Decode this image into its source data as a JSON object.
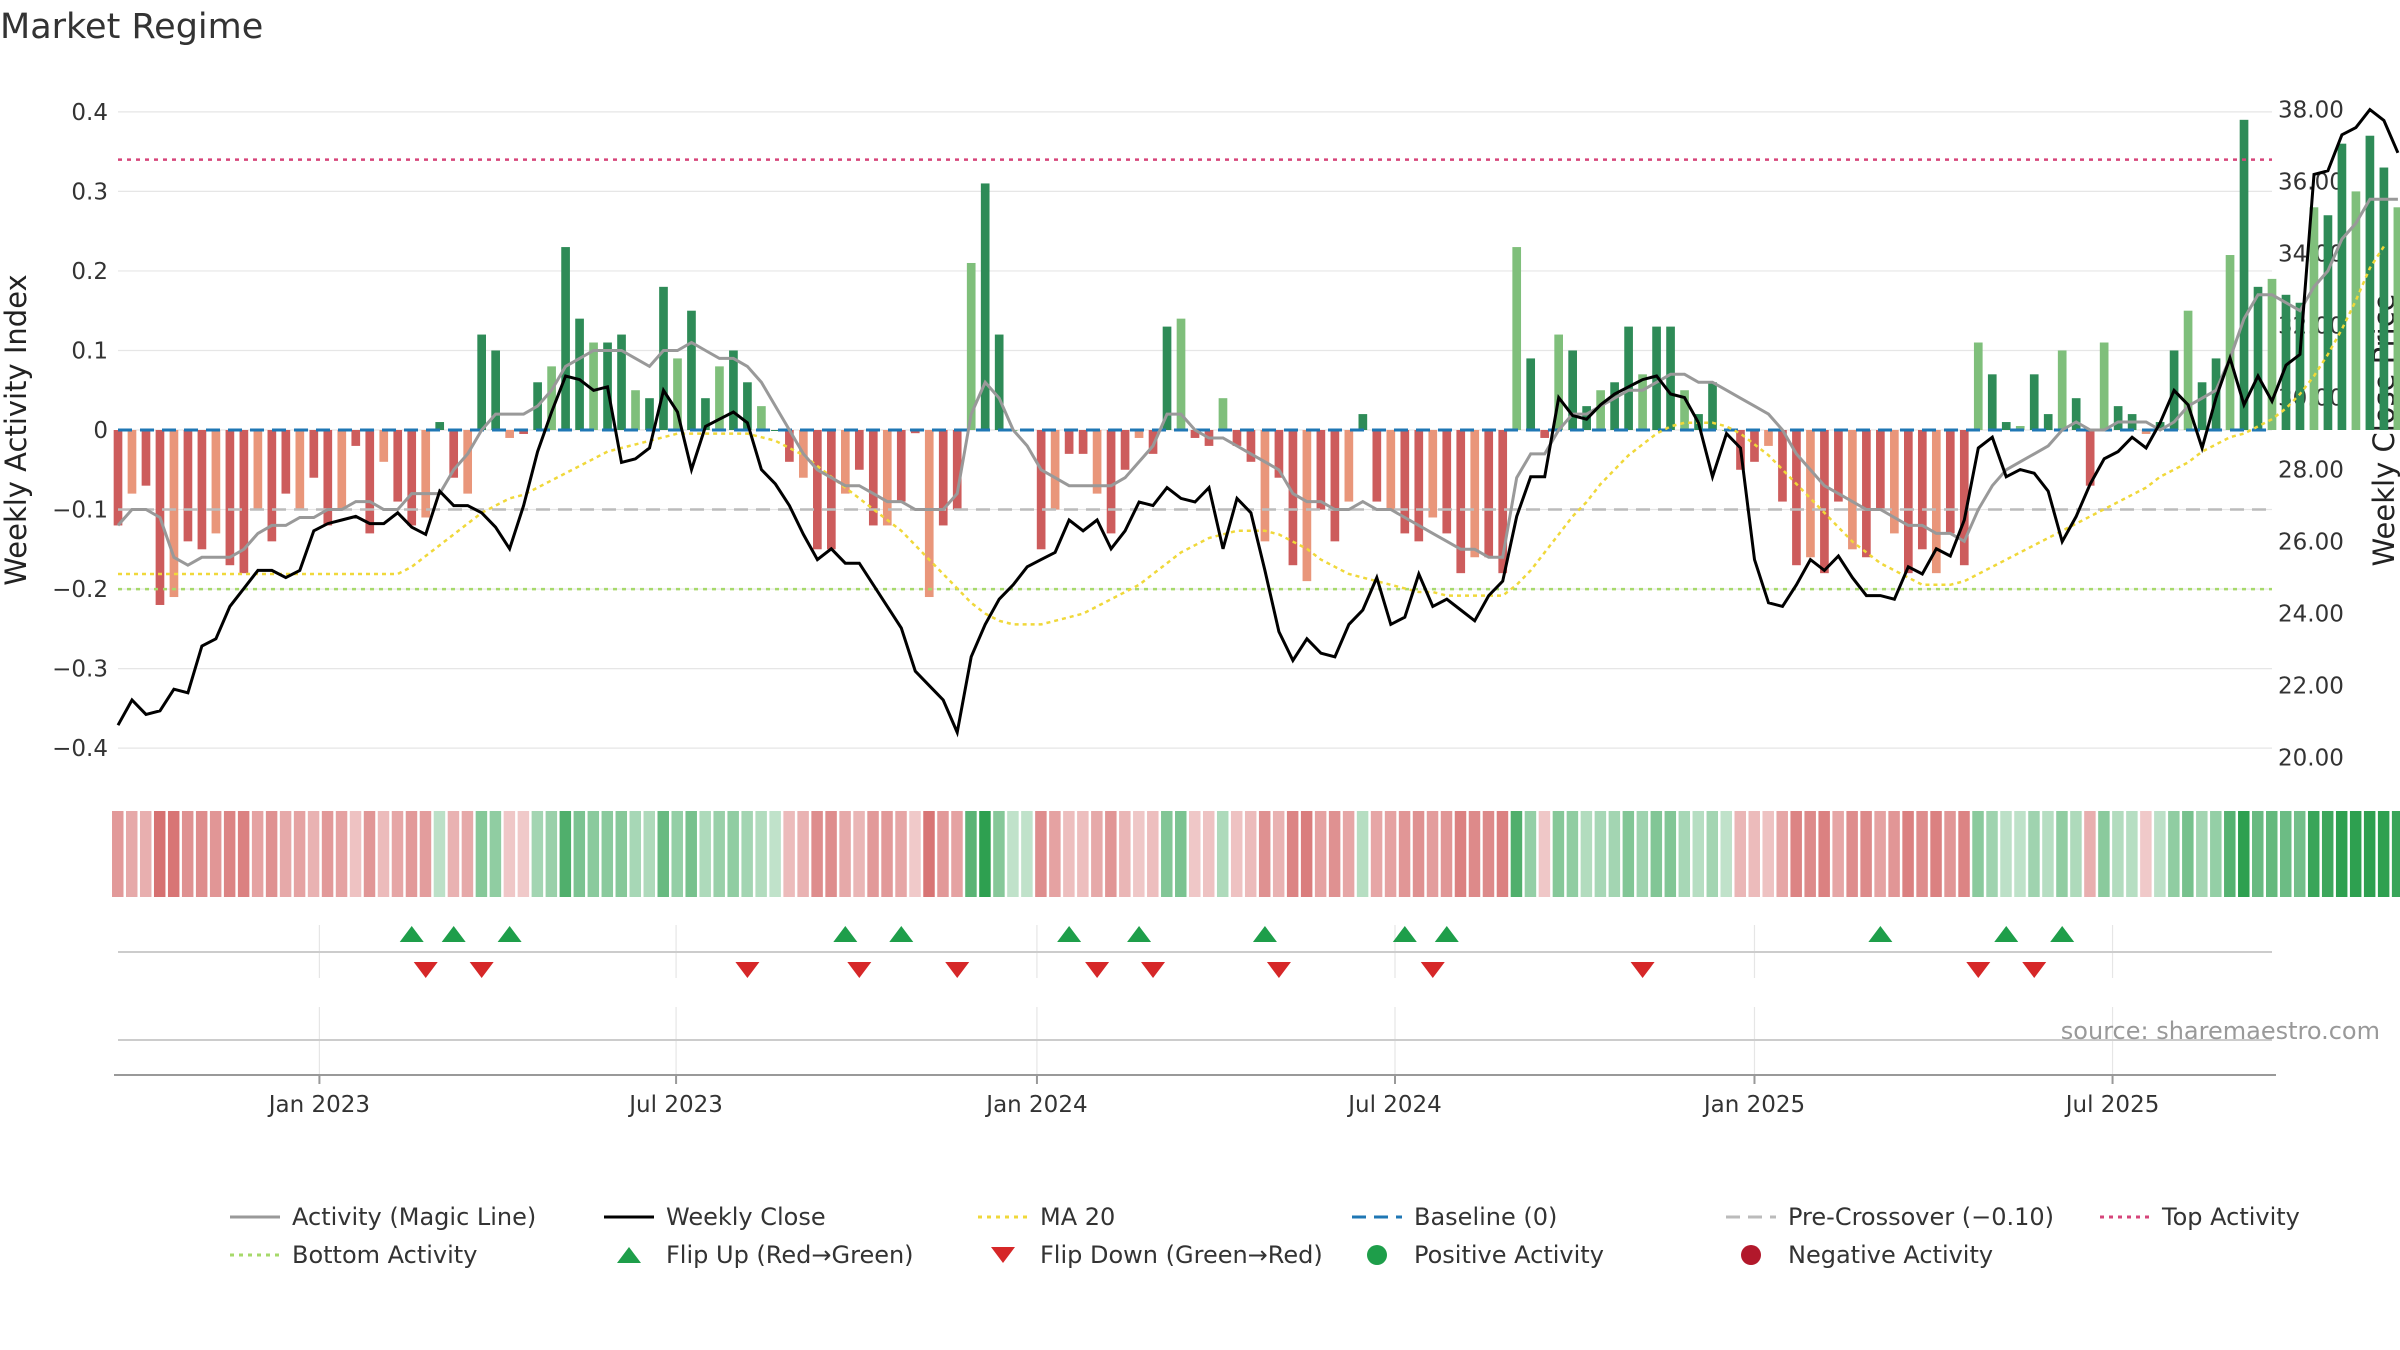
{
  "chart_data": {
    "type": "bar",
    "title": "Market Regime",
    "ylabel_left": "Weekly Activity Index",
    "ylabel_right": "Weekly Close Price",
    "source": "source: sharemaestro.com",
    "y_left": {
      "range": [
        -0.43,
        0.43
      ],
      "ticks": [
        "0.4",
        "0.3",
        "0.2",
        "0.1",
        "0",
        "−0.1",
        "−0.2",
        "−0.3",
        "−0.4"
      ],
      "tick_values": [
        0.4,
        0.3,
        0.2,
        0.1,
        0,
        -0.1,
        -0.2,
        -0.3,
        -0.4
      ]
    },
    "y_right": {
      "range": [
        19.6,
        38.6
      ],
      "ticks": [
        "38.00",
        "36.00",
        "34.00",
        "32.00",
        "30.00",
        "28.00",
        "26.00",
        "24.00",
        "22.00",
        "20.00"
      ],
      "tick_values": [
        38,
        36,
        34,
        32,
        30,
        28,
        26,
        24,
        22,
        20
      ]
    },
    "x_axis": {
      "start_week": 0,
      "end_week": 154,
      "ticks": [
        {
          "label": "Jan 2023",
          "week": 14.4
        },
        {
          "label": "Jul 2023",
          "week": 39.9
        },
        {
          "label": "Jan 2024",
          "week": 65.7
        },
        {
          "label": "Jul 2024",
          "week": 91.3
        },
        {
          "label": "Jan 2025",
          "week": 117.0
        },
        {
          "label": "Jul 2025",
          "week": 142.6
        }
      ]
    },
    "reference_lines": {
      "baseline": 0,
      "pre_crossover": -0.1,
      "top_activity": 0.34,
      "bottom_activity": -0.2
    },
    "series": [
      {
        "name": "Weekly Activity Index",
        "values": [
          -0.12,
          -0.08,
          -0.07,
          -0.22,
          -0.21,
          -0.14,
          -0.15,
          -0.13,
          -0.17,
          -0.18,
          -0.1,
          -0.14,
          -0.08,
          -0.1,
          -0.06,
          -0.12,
          -0.1,
          -0.02,
          -0.13,
          -0.04,
          -0.09,
          -0.12,
          -0.11,
          0.01,
          -0.06,
          -0.08,
          0.12,
          0.1,
          -0.01,
          -0.005,
          0.06,
          0.08,
          0.23,
          0.14,
          0.11,
          0.11,
          0.12,
          0.05,
          0.04,
          0.18,
          0.09,
          0.15,
          0.04,
          0.08,
          0.1,
          0.06,
          0.03,
          0.0,
          -0.04,
          -0.06,
          -0.15,
          -0.15,
          -0.08,
          -0.05,
          -0.12,
          -0.12,
          -0.09,
          -0.004,
          -0.21,
          -0.12,
          -0.1,
          0.21,
          0.31,
          0.12,
          0.0,
          0.0,
          -0.15,
          -0.1,
          -0.03,
          -0.03,
          -0.08,
          -0.13,
          -0.05,
          -0.01,
          -0.03,
          0.13,
          0.14,
          -0.01,
          -0.02,
          0.04,
          -0.02,
          -0.04,
          -0.14,
          -0.06,
          -0.17,
          -0.19,
          -0.1,
          -0.14,
          -0.09,
          0.02,
          -0.09,
          -0.1,
          -0.13,
          -0.14,
          -0.11,
          -0.13,
          -0.18,
          -0.16,
          -0.16,
          -0.18,
          0.23,
          0.09,
          -0.01,
          0.12,
          0.1,
          0.03,
          0.05,
          0.06,
          0.13,
          0.07,
          0.13,
          0.13,
          0.05,
          0.02,
          0.06,
          0.0,
          -0.05,
          -0.04,
          -0.02,
          -0.09,
          -0.17,
          -0.16,
          -0.18,
          -0.09,
          -0.15,
          -0.16,
          -0.1,
          -0.13,
          -0.18,
          -0.15,
          -0.18,
          -0.13,
          -0.17,
          0.11,
          0.07,
          0.01,
          0.005,
          0.07,
          0.02,
          0.1,
          0.04,
          -0.07,
          0.11,
          0.03,
          0.02,
          -0.005,
          0.01,
          0.1,
          0.15,
          0.06,
          0.09,
          0.22,
          0.39,
          0.18,
          0.19,
          0.17,
          0.16,
          0.28,
          0.27,
          0.36,
          0.3,
          0.37,
          0.33,
          0.28
        ]
      },
      {
        "name": "Activity (Magic Line)",
        "values": [
          -0.12,
          -0.1,
          -0.1,
          -0.11,
          -0.16,
          -0.17,
          -0.16,
          -0.16,
          -0.16,
          -0.15,
          -0.13,
          -0.12,
          -0.12,
          -0.11,
          -0.11,
          -0.1,
          -0.1,
          -0.09,
          -0.09,
          -0.1,
          -0.1,
          -0.08,
          -0.08,
          -0.08,
          -0.05,
          -0.03,
          0.0,
          0.02,
          0.02,
          0.02,
          0.03,
          0.05,
          0.08,
          0.09,
          0.1,
          0.1,
          0.1,
          0.09,
          0.08,
          0.1,
          0.1,
          0.11,
          0.1,
          0.09,
          0.09,
          0.08,
          0.06,
          0.03,
          0.0,
          -0.03,
          -0.05,
          -0.06,
          -0.07,
          -0.07,
          -0.08,
          -0.09,
          -0.09,
          -0.1,
          -0.1,
          -0.1,
          -0.08,
          0.02,
          0.06,
          0.04,
          0.0,
          -0.02,
          -0.05,
          -0.06,
          -0.07,
          -0.07,
          -0.07,
          -0.07,
          -0.06,
          -0.04,
          -0.02,
          0.02,
          0.02,
          0.0,
          -0.01,
          -0.01,
          -0.02,
          -0.03,
          -0.04,
          -0.05,
          -0.08,
          -0.09,
          -0.09,
          -0.1,
          -0.1,
          -0.09,
          -0.1,
          -0.1,
          -0.11,
          -0.12,
          -0.13,
          -0.14,
          -0.15,
          -0.15,
          -0.16,
          -0.16,
          -0.06,
          -0.03,
          -0.03,
          0.0,
          0.02,
          0.02,
          0.03,
          0.04,
          0.05,
          0.05,
          0.06,
          0.07,
          0.07,
          0.06,
          0.06,
          0.05,
          0.04,
          0.03,
          0.02,
          0.0,
          -0.03,
          -0.05,
          -0.07,
          -0.08,
          -0.09,
          -0.1,
          -0.1,
          -0.11,
          -0.12,
          -0.12,
          -0.13,
          -0.13,
          -0.14,
          -0.1,
          -0.07,
          -0.05,
          -0.04,
          -0.03,
          -0.02,
          0.0,
          0.01,
          0.0,
          0.0,
          0.01,
          0.01,
          0.01,
          0.0,
          0.01,
          0.03,
          0.04,
          0.05,
          0.09,
          0.14,
          0.17,
          0.17,
          0.16,
          0.15,
          0.18,
          0.2,
          0.24,
          0.26,
          0.29,
          0.29,
          0.29
        ]
      },
      {
        "name": "Weekly Close",
        "values": [
          20.9,
          21.6,
          21.2,
          21.3,
          21.9,
          21.8,
          23.1,
          23.3,
          24.2,
          24.7,
          25.2,
          25.2,
          25.0,
          25.2,
          26.3,
          26.5,
          26.6,
          26.7,
          26.5,
          26.5,
          26.8,
          26.4,
          26.2,
          27.4,
          27.0,
          27.0,
          26.8,
          26.4,
          25.8,
          27.0,
          28.5,
          29.6,
          30.6,
          30.5,
          30.2,
          30.3,
          28.2,
          28.3,
          28.6,
          30.2,
          29.6,
          28.0,
          29.2,
          29.4,
          29.6,
          29.3,
          28.0,
          27.6,
          27.0,
          26.2,
          25.5,
          25.8,
          25.4,
          25.4,
          24.8,
          24.2,
          23.6,
          22.4,
          22.0,
          21.6,
          20.7,
          22.8,
          23.7,
          24.4,
          24.8,
          25.3,
          25.5,
          25.7,
          26.6,
          26.3,
          26.6,
          25.8,
          26.3,
          27.1,
          27.0,
          27.5,
          27.2,
          27.1,
          27.5,
          25.8,
          27.2,
          26.8,
          25.2,
          23.5,
          22.7,
          23.3,
          22.9,
          22.8,
          23.7,
          24.1,
          25.0,
          23.7,
          23.9,
          25.1,
          24.2,
          24.4,
          24.1,
          23.8,
          24.5,
          24.9,
          26.7,
          27.8,
          27.8,
          30.0,
          29.5,
          29.4,
          29.8,
          30.1,
          30.3,
          30.5,
          30.6,
          30.1,
          30.0,
          29.3,
          27.8,
          29.0,
          28.6,
          25.5,
          24.3,
          24.2,
          24.8,
          25.5,
          25.2,
          25.6,
          25.0,
          24.5,
          24.5,
          24.4,
          25.3,
          25.1,
          25.8,
          25.6,
          26.6,
          28.6,
          28.9,
          27.8,
          28.0,
          27.9,
          27.4,
          26.0,
          26.7,
          27.6,
          28.3,
          28.5,
          28.9,
          28.6,
          29.3,
          30.2,
          29.8,
          28.6,
          30.0,
          31.1,
          29.8,
          30.6,
          29.9,
          30.9,
          31.2,
          36.2,
          36.3,
          37.3,
          37.5,
          38.0,
          37.7,
          36.8
        ]
      },
      {
        "name": "MA 20",
        "values": [
          25.1,
          25.1,
          25.1,
          25.1,
          25.1,
          25.1,
          25.1,
          25.1,
          25.1,
          25.1,
          25.1,
          25.1,
          25.1,
          25.1,
          25.1,
          25.1,
          25.1,
          25.1,
          25.1,
          25.1,
          25.1,
          25.3,
          25.6,
          25.9,
          26.2,
          26.5,
          26.8,
          27.0,
          27.2,
          27.3,
          27.5,
          27.7,
          27.9,
          28.1,
          28.3,
          28.5,
          28.6,
          28.7,
          28.8,
          28.9,
          29.0,
          29.0,
          29.0,
          29.0,
          29.0,
          29.0,
          28.9,
          28.8,
          28.6,
          28.4,
          28.1,
          27.8,
          27.5,
          27.2,
          26.9,
          26.6,
          26.3,
          25.9,
          25.5,
          25.1,
          24.7,
          24.3,
          24.0,
          23.8,
          23.7,
          23.7,
          23.7,
          23.8,
          23.9,
          24.0,
          24.2,
          24.4,
          24.6,
          24.8,
          25.1,
          25.4,
          25.7,
          25.9,
          26.1,
          26.2,
          26.3,
          26.3,
          26.3,
          26.2,
          26.0,
          25.8,
          25.5,
          25.3,
          25.1,
          25.0,
          24.9,
          24.8,
          24.7,
          24.6,
          24.6,
          24.5,
          24.5,
          24.5,
          24.5,
          24.5,
          24.8,
          25.2,
          25.7,
          26.2,
          26.7,
          27.1,
          27.6,
          28.0,
          28.4,
          28.7,
          29.0,
          29.2,
          29.3,
          29.3,
          29.3,
          29.2,
          29.0,
          28.7,
          28.4,
          28.0,
          27.6,
          27.2,
          26.8,
          26.4,
          26.0,
          25.7,
          25.4,
          25.2,
          25.0,
          24.8,
          24.8,
          24.8,
          24.9,
          25.1,
          25.3,
          25.5,
          25.7,
          25.9,
          26.1,
          26.3,
          26.5,
          26.7,
          26.9,
          27.1,
          27.3,
          27.5,
          27.8,
          28.0,
          28.2,
          28.5,
          28.7,
          28.9,
          29.0,
          29.2,
          29.4,
          29.7,
          30.1,
          30.6,
          31.2,
          31.9,
          32.7,
          33.6,
          34.2
        ]
      }
    ],
    "flip_up_weeks": [
      21,
      24,
      28,
      52,
      56,
      68,
      73,
      82,
      92,
      95,
      126,
      135,
      139
    ],
    "flip_down_weeks": [
      22,
      26,
      45,
      53,
      60,
      70,
      74,
      83,
      94,
      109,
      133,
      137
    ],
    "regime_strip": "Weekly Activity Index mapped to red (negative) / green (positive) strip",
    "legend": [
      {
        "label": "Activity (Magic Line)",
        "color": "#999999",
        "style": "solid"
      },
      {
        "label": "Weekly Close",
        "color": "#000000",
        "style": "solid"
      },
      {
        "label": "MA 20",
        "color": "#f0d83a",
        "style": "dotted"
      },
      {
        "label": "Baseline (0)",
        "color": "#1f77b4",
        "style": "dashed"
      },
      {
        "label": "Pre-Crossover (−0.10)",
        "color": "#bbbbbb",
        "style": "dashed"
      },
      {
        "label": "Top Activity",
        "color": "#d6457a",
        "style": "dotted"
      },
      {
        "label": "Bottom Activity",
        "color": "#a6d96a",
        "style": "dotted"
      },
      {
        "label": "Flip Up (Red→Green)",
        "color": "#1e9e4a",
        "style": "triangle-up"
      },
      {
        "label": "Flip Down (Green→Red)",
        "color": "#d62728",
        "style": "triangle-down"
      },
      {
        "label": "Positive Activity",
        "color": "#1e9e4a",
        "style": "circle"
      },
      {
        "label": "Negative Activity",
        "color": "#b2182b",
        "style": "circle"
      }
    ],
    "colors": {
      "bar_pos_strong": "#2e8b57",
      "bar_pos_light": "#7fbf7b",
      "bar_neg_strong": "#cd5c5c",
      "bar_neg_light": "#e9967a",
      "close": "#000000",
      "magic": "#999999",
      "ma": "#f0d83a",
      "baseline": "#1f77b4",
      "pre": "#bbbbbb",
      "top": "#d6457a",
      "bottom": "#a6d96a",
      "grid": "#e6e6e6"
    }
  }
}
